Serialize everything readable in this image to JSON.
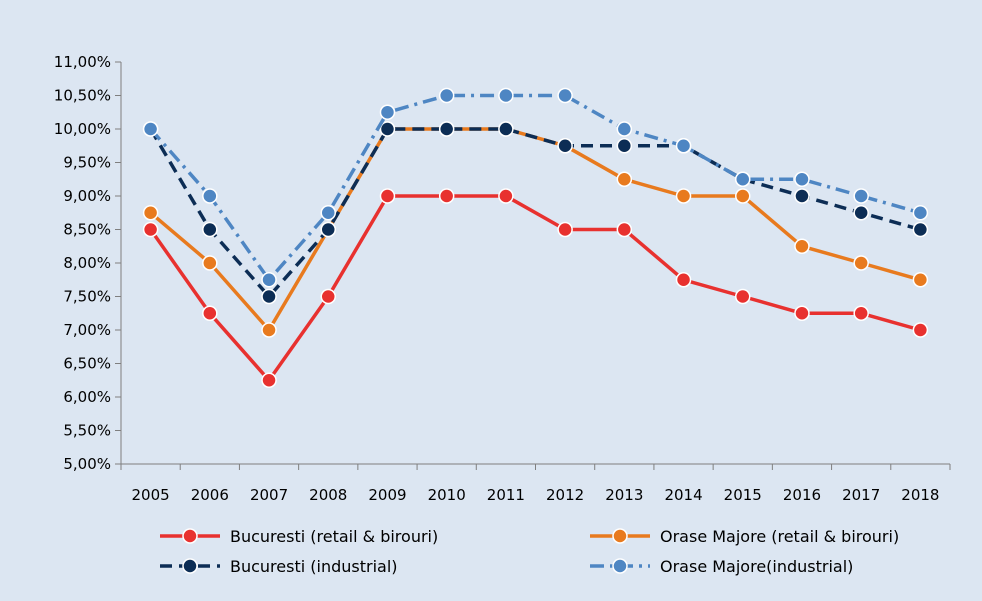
{
  "chart_data": {
    "type": "line",
    "title": "",
    "xlabel": "",
    "ylabel": "",
    "categories": [
      "2005",
      "2006",
      "2007",
      "2008",
      "2009",
      "2010",
      "2011",
      "2012",
      "2013",
      "2014",
      "2015",
      "2016",
      "2017",
      "2018"
    ],
    "ylim": [
      5.0,
      11.0
    ],
    "ytick_values": [
      5.0,
      5.5,
      6.0,
      6.5,
      7.0,
      7.5,
      8.0,
      8.5,
      9.0,
      9.5,
      10.0,
      10.5,
      11.0
    ],
    "ytick_labels": [
      "5,00%",
      "5,50%",
      "6,00%",
      "6,50%",
      "7,00%",
      "7,50%",
      "8,00%",
      "8,50%",
      "9,00%",
      "9,50%",
      "10,00%",
      "10,50%",
      "11,00%"
    ],
    "grid": false,
    "legend_position": "bottom",
    "background": "#DCE6F2",
    "series": [
      {
        "name": "Bucuresti (retail & birouri)",
        "color": "#E8312F",
        "dash": "solid",
        "values": [
          8.5,
          7.25,
          6.25,
          7.5,
          9.0,
          9.0,
          9.0,
          8.5,
          8.5,
          7.75,
          7.5,
          7.25,
          7.25,
          7.0
        ]
      },
      {
        "name": "Orase Majore (retail & birouri)",
        "color": "#E87A1E",
        "dash": "solid",
        "values": [
          8.75,
          8.0,
          7.0,
          8.5,
          10.0,
          10.0,
          10.0,
          9.75,
          9.25,
          9.0,
          9.0,
          8.25,
          8.0,
          7.75
        ]
      },
      {
        "name": "Bucuresti (industrial)",
        "color": "#0C2D55",
        "dash": "dash",
        "values": [
          10.0,
          8.5,
          7.5,
          8.5,
          10.0,
          10.0,
          10.0,
          9.75,
          9.75,
          9.75,
          9.25,
          9.0,
          8.75,
          8.5
        ]
      },
      {
        "name": "Orase Majore(industrial)",
        "color": "#4E86C3",
        "dash": "dash-dot",
        "values": [
          10.0,
          9.0,
          7.75,
          8.75,
          10.25,
          10.5,
          10.5,
          10.5,
          10.0,
          9.75,
          9.25,
          9.25,
          9.0,
          8.75
        ]
      }
    ]
  }
}
